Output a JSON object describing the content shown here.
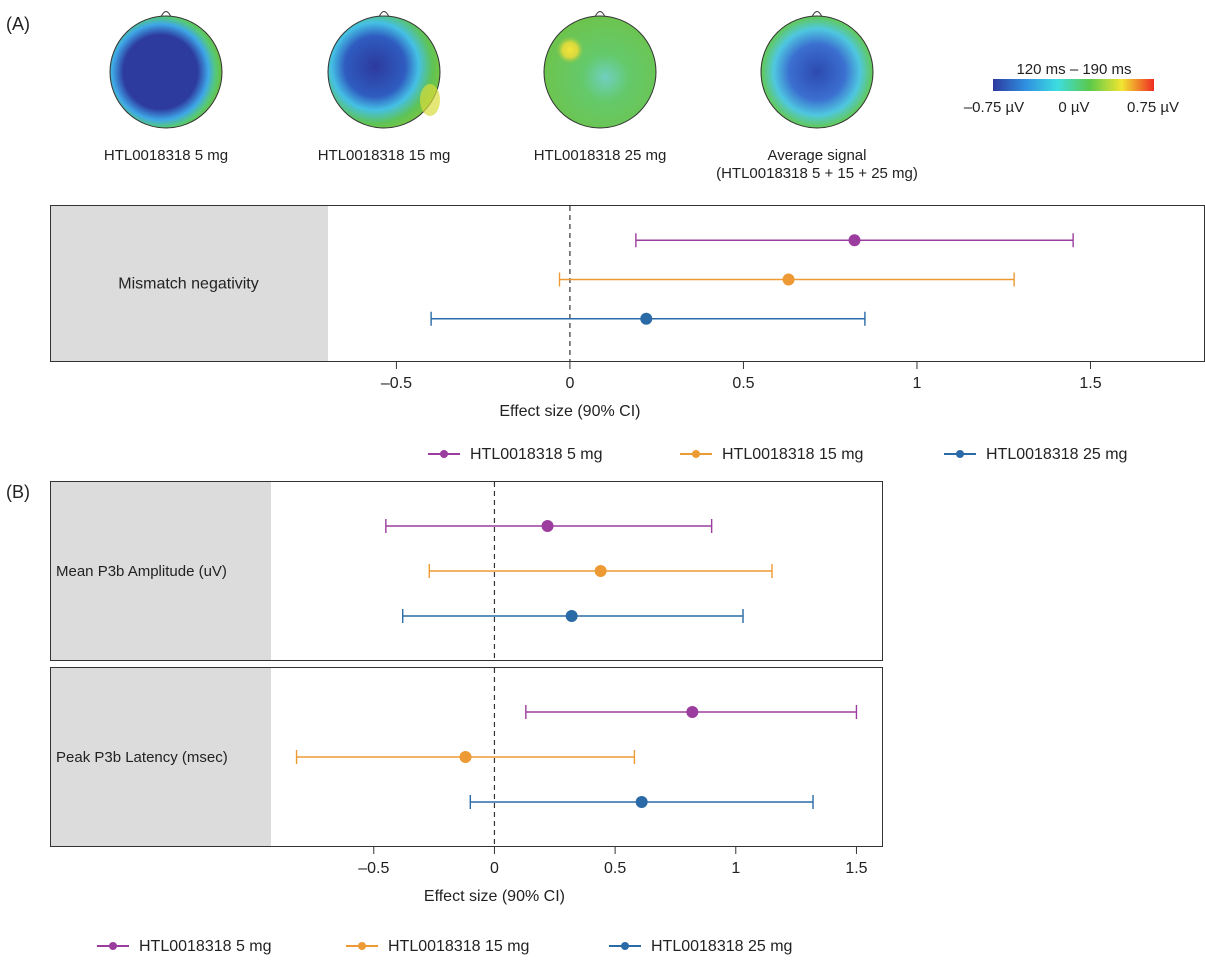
{
  "panel_a": {
    "label": "(A)",
    "topomaps": [
      {
        "label": "HTL0018318 5 mg"
      },
      {
        "label": "HTL0018318 15 mg"
      },
      {
        "label": "HTL0018318 25 mg"
      },
      {
        "label": "Average signal",
        "label2": "(HTL0018318 5 + 15 + 25 mg)"
      }
    ],
    "colorbar": {
      "title": "120 ms – 190 ms",
      "min_label": "–0.75 µV",
      "mid_label": "0 µV",
      "max_label": "0.75 µV",
      "colors": [
        "#2d3a9e",
        "#2f8fe0",
        "#3ddde0",
        "#5bc94b",
        "#f1e531",
        "#ef2b22"
      ]
    }
  },
  "panel_b": {
    "label": "(B)"
  },
  "colors": {
    "5mg": "#9b3d9e",
    "15mg": "#ee9a34",
    "25mg": "#2a6aa6",
    "panel_bg": "#dcdcdc"
  },
  "chart_data": [
    {
      "type": "forest",
      "xlabel": "Effect size (90% CI)",
      "xticks": [
        "–0.5",
        "0",
        "0.5",
        "1",
        "1.5"
      ],
      "xlim": [
        -0.7,
        1.83
      ],
      "legend": [
        "HTL0018318 5 mg",
        "HTL0018318 15 mg",
        "HTL0018318 25 mg"
      ],
      "rows": [
        {
          "label": "Mismatch negativity",
          "points": [
            {
              "dose": "5mg",
              "est": 0.82,
              "lo": 0.19,
              "hi": 1.45
            },
            {
              "dose": "15mg",
              "est": 0.63,
              "lo": -0.03,
              "hi": 1.28
            },
            {
              "dose": "25mg",
              "est": 0.22,
              "lo": -0.4,
              "hi": 0.85
            }
          ]
        }
      ]
    },
    {
      "type": "forest",
      "xlabel": "Effect size (90% CI)",
      "xticks": [
        "–0.5",
        "0",
        "0.5",
        "1",
        "1.5"
      ],
      "xlim": [
        -0.93,
        1.61
      ],
      "legend": [
        "HTL0018318 5 mg",
        "HTL0018318 15 mg",
        "HTL0018318 25 mg"
      ],
      "rows": [
        {
          "label": "Mean P3b Amplitude (uV)",
          "points": [
            {
              "dose": "5mg",
              "est": 0.22,
              "lo": -0.45,
              "hi": 0.9
            },
            {
              "dose": "15mg",
              "est": 0.44,
              "lo": -0.27,
              "hi": 1.15
            },
            {
              "dose": "25mg",
              "est": 0.32,
              "lo": -0.38,
              "hi": 1.03
            }
          ]
        },
        {
          "label": "Peak P3b Latency (msec)",
          "points": [
            {
              "dose": "5mg",
              "est": 0.82,
              "lo": 0.13,
              "hi": 1.5
            },
            {
              "dose": "15mg",
              "est": -0.12,
              "lo": -0.82,
              "hi": 0.58
            },
            {
              "dose": "25mg",
              "est": 0.61,
              "lo": -0.1,
              "hi": 1.32
            }
          ]
        }
      ]
    }
  ]
}
